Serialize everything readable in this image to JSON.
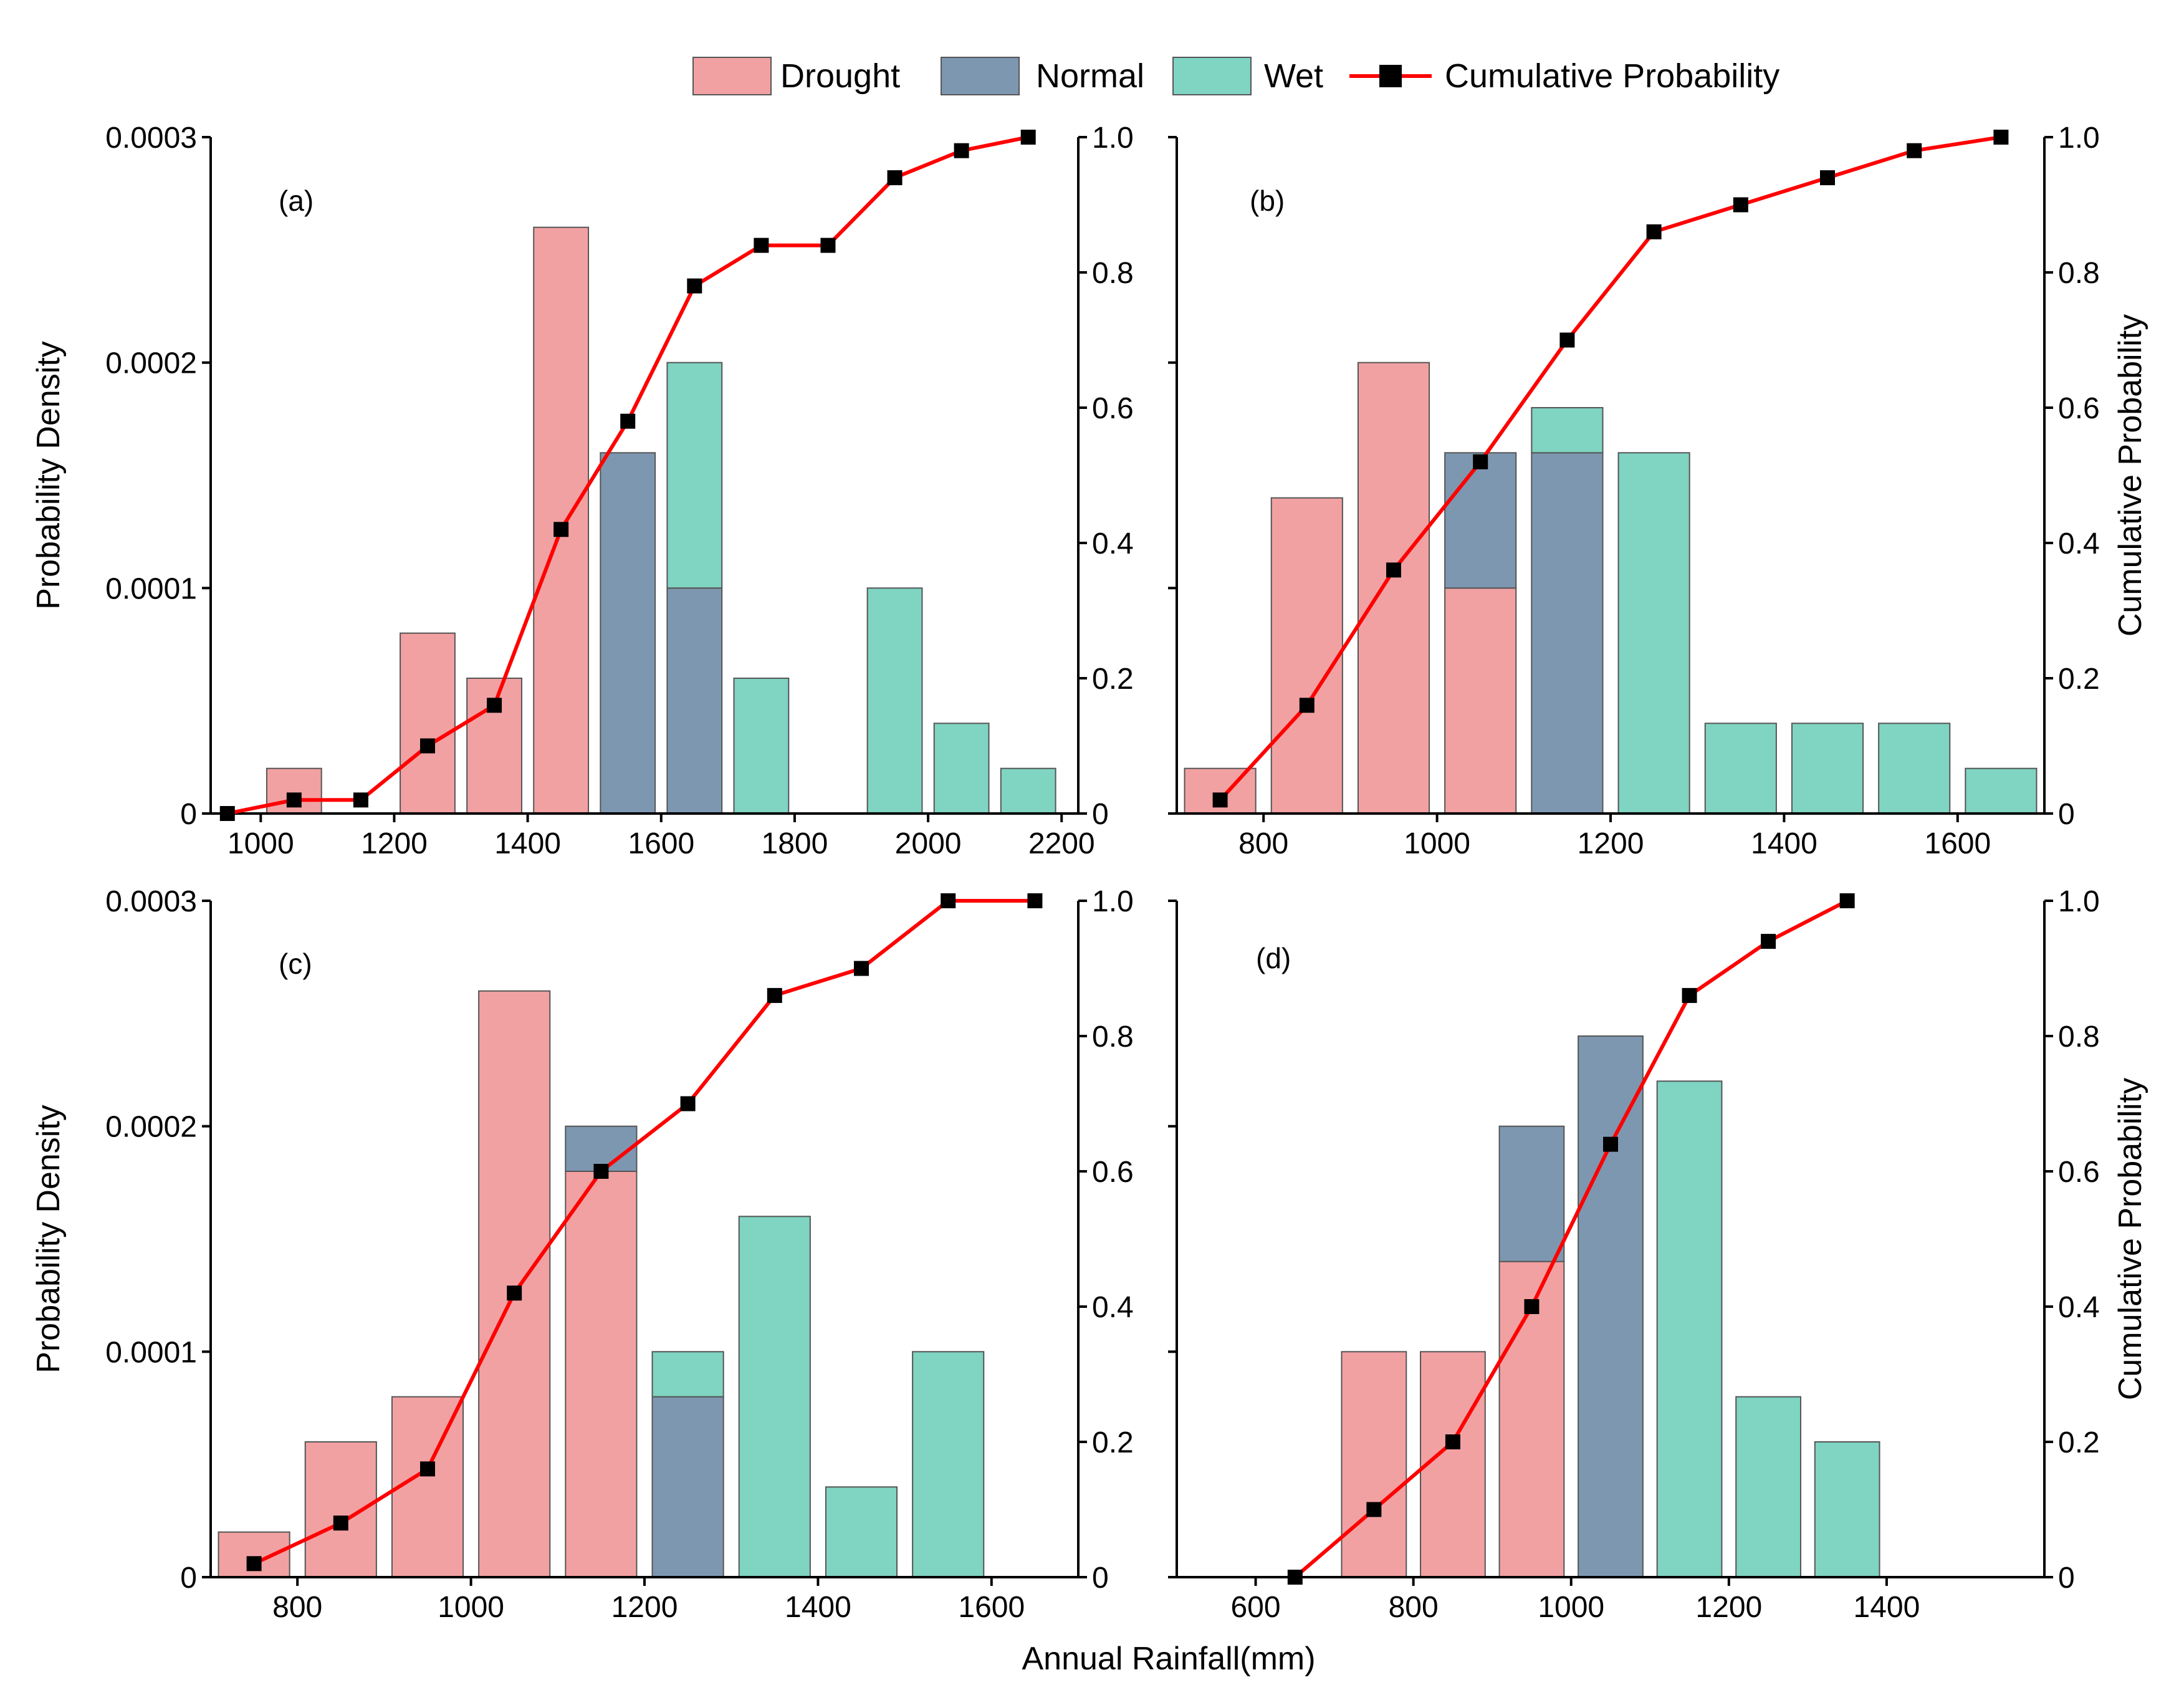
{
  "colors": {
    "drought": "#f2a1a3",
    "normal": "#7e97b1",
    "wet": "#7fd4c2",
    "cumulative_line": "#ff0000",
    "cumulative_marker": "#000000"
  },
  "legend": {
    "drought": "Drought",
    "normal": "Normal",
    "wet": "Wet",
    "cumulative": "Cumulative Probability"
  },
  "shared": {
    "xlabel": "Annual Rainfall(mm)",
    "ylabel_left": "Probability Density",
    "ylabel_right": "Cumulative Probability"
  },
  "chart_data": [
    {
      "type": "bar",
      "panel_label": "(a)",
      "ylabel_left": "Probability Density",
      "ylim": [
        0,
        0.0003
      ],
      "y2lim": [
        0,
        1.0
      ],
      "xlim": [
        925,
        2225
      ],
      "xticks": [
        1000,
        1200,
        1400,
        1600,
        1800,
        2000,
        2200
      ],
      "xtick_labels": [
        "1000",
        "1200",
        "1400",
        "1600",
        "1800",
        "2000",
        "2200"
      ],
      "yticks": [
        0,
        0.0001,
        0.0002,
        0.0003
      ],
      "ytick_labels": [
        "0",
        "0.0001",
        "0.0002",
        "0.0003"
      ],
      "y2ticks": [
        0,
        0.2,
        0.4,
        0.6,
        0.8,
        1.0
      ],
      "y2tick_labels": [
        "0",
        "0.2",
        "0.4",
        "0.6",
        "0.8",
        "1.0"
      ],
      "bin_width": 100,
      "bars": [
        {
          "center": 1050,
          "drought": 2e-05,
          "normal": 0,
          "wet": 0
        },
        {
          "center": 1250,
          "drought": 8e-05,
          "normal": 0,
          "wet": 0
        },
        {
          "center": 1350,
          "drought": 6e-05,
          "normal": 0,
          "wet": 0
        },
        {
          "center": 1450,
          "drought": 0.00026,
          "normal": 0,
          "wet": 0
        },
        {
          "center": 1550,
          "drought": 0,
          "normal": 0.00016,
          "wet": 0
        },
        {
          "center": 1650,
          "drought": 0,
          "normal": 0.0001,
          "wet": 0.0001
        },
        {
          "center": 1750,
          "drought": 0,
          "normal": 0,
          "wet": 6e-05
        },
        {
          "center": 1950,
          "drought": 0,
          "normal": 0,
          "wet": 0.0001
        },
        {
          "center": 2050,
          "drought": 0,
          "normal": 0,
          "wet": 4e-05
        },
        {
          "center": 2150,
          "drought": 0,
          "normal": 0,
          "wet": 2e-05
        }
      ],
      "cumulative": {
        "x": [
          950,
          1050,
          1150,
          1250,
          1350,
          1450,
          1550,
          1650,
          1750,
          1850,
          1950,
          2050,
          2150
        ],
        "y": [
          0,
          0.02,
          0.02,
          0.1,
          0.16,
          0.42,
          0.58,
          0.78,
          0.84,
          0.84,
          0.94,
          0.98,
          1.0
        ]
      }
    },
    {
      "type": "bar",
      "panel_label": "(b)",
      "ylabel_right": "Cumulative Probability",
      "ylim": [
        0,
        0.0003
      ],
      "y2lim": [
        0,
        1.0
      ],
      "xlim": [
        700,
        1700
      ],
      "xticks": [
        800,
        1000,
        1200,
        1400,
        1600
      ],
      "xtick_labels": [
        "800",
        "1000",
        "1200",
        "1400",
        "1600"
      ],
      "yticks": [
        0,
        0.0001,
        0.0002,
        0.0003
      ],
      "y2ticks": [
        0,
        0.2,
        0.4,
        0.6,
        0.8,
        1.0
      ],
      "y2tick_labels": [
        "0",
        "0.2",
        "0.4",
        "0.6",
        "0.8",
        "1.0"
      ],
      "bin_width": 100,
      "bars": [
        {
          "center": 750,
          "drought": 2e-05,
          "normal": 0,
          "wet": 0
        },
        {
          "center": 850,
          "drought": 0.00014,
          "normal": 0,
          "wet": 0
        },
        {
          "center": 950,
          "drought": 0.0002,
          "normal": 0,
          "wet": 0
        },
        {
          "center": 1050,
          "drought": 0.0001,
          "normal": 6e-05,
          "wet": 0
        },
        {
          "center": 1150,
          "drought": 0,
          "normal": 0.00016,
          "wet": 2e-05
        },
        {
          "center": 1250,
          "drought": 0,
          "normal": 0,
          "wet": 0.00016
        },
        {
          "center": 1350,
          "drought": 0,
          "normal": 0,
          "wet": 4e-05
        },
        {
          "center": 1450,
          "drought": 0,
          "normal": 0,
          "wet": 4e-05
        },
        {
          "center": 1550,
          "drought": 0,
          "normal": 0,
          "wet": 4e-05
        },
        {
          "center": 1650,
          "drought": 0,
          "normal": 0,
          "wet": 2e-05
        }
      ],
      "cumulative": {
        "x": [
          750,
          850,
          950,
          1050,
          1150,
          1250,
          1350,
          1450,
          1550,
          1650
        ],
        "y": [
          0.02,
          0.16,
          0.36,
          0.52,
          0.7,
          0.86,
          0.9,
          0.94,
          0.98,
          1.0
        ]
      }
    },
    {
      "type": "bar",
      "panel_label": "(c)",
      "ylabel_left": "Probability Density",
      "ylim": [
        0,
        0.0003
      ],
      "y2lim": [
        0,
        1.0
      ],
      "xlim": [
        700,
        1700
      ],
      "xticks": [
        800,
        1000,
        1200,
        1400,
        1600
      ],
      "xtick_labels": [
        "800",
        "1000",
        "1200",
        "1400",
        "1600"
      ],
      "yticks": [
        0,
        0.0001,
        0.0002,
        0.0003
      ],
      "ytick_labels": [
        "0",
        "0.0001",
        "0.0002",
        "0.0003"
      ],
      "y2ticks": [
        0,
        0.2,
        0.4,
        0.6,
        0.8,
        1.0
      ],
      "y2tick_labels": [
        "0",
        "0.2",
        "0.4",
        "0.6",
        "0.8",
        "1.0"
      ],
      "bin_width": 100,
      "bars": [
        {
          "center": 750,
          "drought": 2e-05,
          "normal": 0,
          "wet": 0
        },
        {
          "center": 850,
          "drought": 6e-05,
          "normal": 0,
          "wet": 0
        },
        {
          "center": 950,
          "drought": 8e-05,
          "normal": 0,
          "wet": 0
        },
        {
          "center": 1050,
          "drought": 0.00026,
          "normal": 0,
          "wet": 0
        },
        {
          "center": 1150,
          "drought": 0.00018,
          "normal": 2e-05,
          "wet": 0
        },
        {
          "center": 1250,
          "drought": 0,
          "normal": 8e-05,
          "wet": 2e-05
        },
        {
          "center": 1350,
          "drought": 0,
          "normal": 0,
          "wet": 0.00016
        },
        {
          "center": 1450,
          "drought": 0,
          "normal": 0,
          "wet": 4e-05
        },
        {
          "center": 1550,
          "drought": 0,
          "normal": 0,
          "wet": 0.0001
        }
      ],
      "cumulative": {
        "x": [
          750,
          850,
          950,
          1050,
          1150,
          1250,
          1350,
          1450,
          1550,
          1650
        ],
        "y": [
          0.02,
          0.08,
          0.16,
          0.42,
          0.6,
          0.7,
          0.86,
          0.9,
          1.0,
          1.0
        ]
      }
    },
    {
      "type": "bar",
      "panel_label": "(d)",
      "ylabel_right": "Cumulative Probability",
      "ylim": [
        0,
        0.0003
      ],
      "y2lim": [
        0,
        1.0
      ],
      "xlim": [
        500,
        1600
      ],
      "xticks": [
        600,
        800,
        1000,
        1200,
        1400
      ],
      "xtick_labels": [
        "600",
        "800",
        "1000",
        "1200",
        "1400"
      ],
      "yticks": [
        0,
        0.0001,
        0.0002,
        0.0003
      ],
      "y2ticks": [
        0,
        0.2,
        0.4,
        0.6,
        0.8,
        1.0
      ],
      "y2tick_labels": [
        "0",
        "0.2",
        "0.4",
        "0.6",
        "0.8",
        "1.0"
      ],
      "bin_width": 100,
      "bars": [
        {
          "center": 750,
          "drought": 0.0001,
          "normal": 0,
          "wet": 0
        },
        {
          "center": 850,
          "drought": 0.0001,
          "normal": 0,
          "wet": 0
        },
        {
          "center": 950,
          "drought": 0.00014,
          "normal": 6e-05,
          "wet": 0
        },
        {
          "center": 1050,
          "drought": 0,
          "normal": 0.00024,
          "wet": 0
        },
        {
          "center": 1150,
          "drought": 0,
          "normal": 0,
          "wet": 0.00022
        },
        {
          "center": 1250,
          "drought": 0,
          "normal": 0,
          "wet": 8e-05
        },
        {
          "center": 1350,
          "drought": 0,
          "normal": 0,
          "wet": 6e-05
        }
      ],
      "cumulative": {
        "x": [
          650,
          750,
          850,
          950,
          1050,
          1150,
          1250,
          1350
        ],
        "y": [
          0,
          0.1,
          0.2,
          0.4,
          0.64,
          0.86,
          0.94,
          1.0
        ]
      }
    }
  ]
}
